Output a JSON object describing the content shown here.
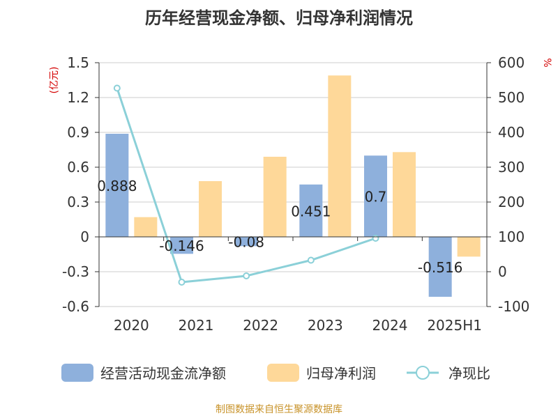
{
  "chart_data": {
    "type": "bar",
    "title": "历年经营现金净额、归母净利润情况",
    "categories": [
      "2020",
      "2021",
      "2022",
      "2023",
      "2024",
      "2025H1"
    ],
    "series": [
      {
        "name": "经营活动现金流净额",
        "type": "bar",
        "axis": "left",
        "color": "#8eb0dc",
        "values": [
          0.888,
          -0.146,
          -0.08,
          0.451,
          0.7,
          -0.516
        ],
        "labels": [
          "0.888",
          "-0.146",
          "-0.08",
          "0.451",
          "0.7",
          "-0.516"
        ]
      },
      {
        "name": "归母净利润",
        "type": "bar",
        "axis": "left",
        "color": "#fed899",
        "values": [
          0.17,
          0.48,
          0.69,
          1.39,
          0.73,
          -0.17
        ]
      },
      {
        "name": "净现比",
        "type": "line",
        "axis": "right",
        "color": "#8bd0d8",
        "values": [
          527,
          -30,
          -12,
          33,
          96,
          null
        ]
      }
    ],
    "y_left": {
      "unit": "(亿元)",
      "ylim": [
        -0.6,
        1.5
      ],
      "ticks": [
        1.5,
        1.2,
        0.9,
        0.6,
        0.3,
        0,
        -0.3,
        -0.6
      ],
      "tick_labels": [
        "1.5",
        "1.2",
        "0.9",
        "0.6",
        "0.3",
        "0",
        "-0.3",
        "-0.6"
      ]
    },
    "y_right": {
      "unit": "%",
      "ylim": [
        -100,
        600
      ],
      "ticks": [
        600,
        500,
        400,
        300,
        200,
        100,
        0,
        -100
      ],
      "tick_labels": [
        "600",
        "500",
        "400",
        "300",
        "200",
        "100",
        "0",
        "-100"
      ]
    },
    "grid": true,
    "legend_position": "bottom"
  },
  "source": "制图数据来自恒生聚源数据库",
  "colors": {
    "grid": "#cccccc",
    "axis": "#333333",
    "unit": "#d40000",
    "source": "#c8932a",
    "text": "#333333"
  }
}
